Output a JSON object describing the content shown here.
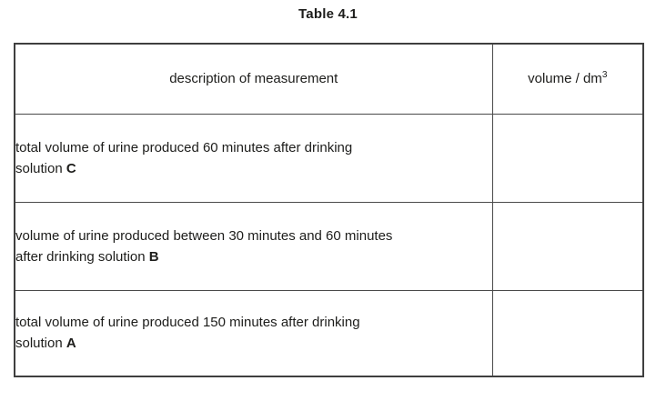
{
  "title": "Table 4.1",
  "table": {
    "headers": {
      "description": "description of measurement",
      "volume_prefix": "volume / dm",
      "volume_exponent": "3"
    },
    "rows": [
      {
        "line1": "total volume of urine produced 60 minutes after drinking",
        "line2_prefix": "solution ",
        "solution_label": "C",
        "volume_value": ""
      },
      {
        "line1": "volume of urine produced between 30 minutes and 60 minutes",
        "line2_prefix": "after drinking solution ",
        "solution_label": "B",
        "volume_value": ""
      },
      {
        "line1": "total volume of urine produced 150 minutes after drinking",
        "line2_prefix": "solution ",
        "solution_label": "A",
        "volume_value": ""
      }
    ]
  },
  "colors": {
    "background": "#ffffff",
    "border": "#4a4a4a",
    "text": "#1d1d1b"
  }
}
